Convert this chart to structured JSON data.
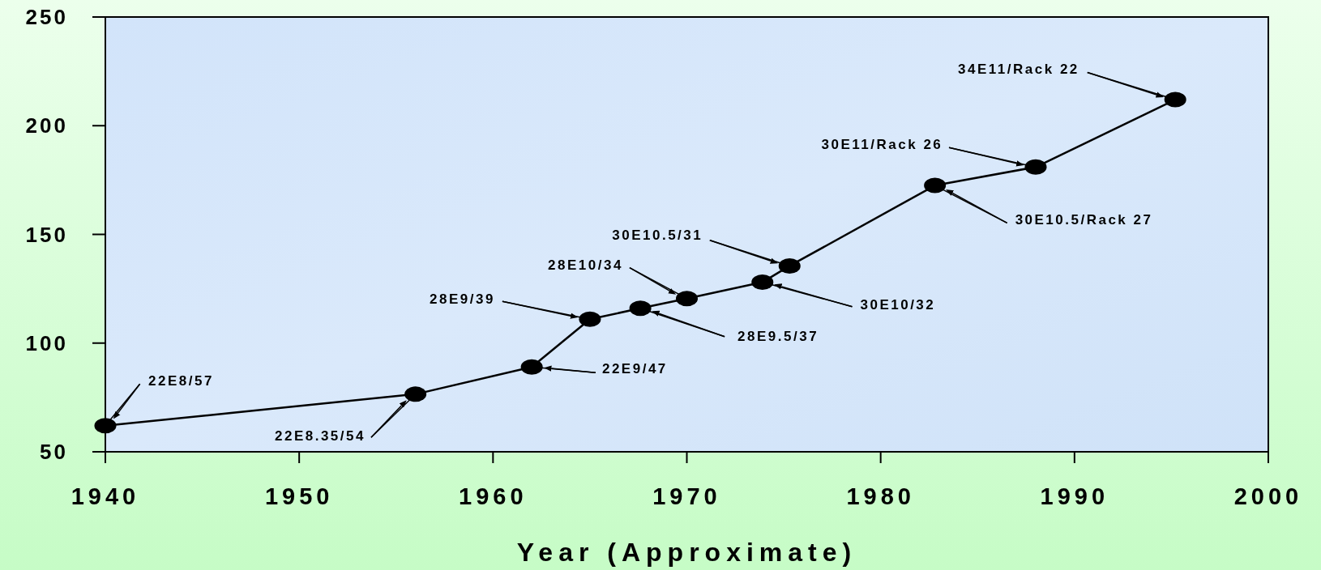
{
  "chart_data": {
    "type": "line",
    "xlabel": "Year (Approximate)",
    "x": [
      1940,
      1956,
      1962,
      1965,
      1967.6,
      1970,
      1973.9,
      1975.3,
      1982.8,
      1988,
      1995.2
    ],
    "series": [
      {
        "color": "#000000",
        "values": [
          62,
          76.5,
          89,
          111,
          116,
          120.5,
          128,
          135.5,
          172.5,
          181,
          212
        ]
      }
    ],
    "xlim": [
      1940,
      2000
    ],
    "xticks": [
      1940,
      1950,
      1960,
      1970,
      1980,
      1990,
      2000
    ],
    "ylim": [
      50,
      250
    ],
    "yticks": [
      50,
      100,
      150,
      200,
      250
    ],
    "grid": false,
    "marker": "circle",
    "line_style": "solid",
    "annotations": [
      {
        "text": "22E8/57",
        "x": 1940,
        "y": 62
      },
      {
        "text": "22E8.35/54",
        "x": 1956,
        "y": 76.5
      },
      {
        "text": "22E9/47",
        "x": 1962,
        "y": 89
      },
      {
        "text": "28E9/39",
        "x": 1965,
        "y": 111
      },
      {
        "text": "28E9.5/37",
        "x": 1967.6,
        "y": 116
      },
      {
        "text": "28E10/34",
        "x": 1970,
        "y": 120.5
      },
      {
        "text": "30E10/32",
        "x": 1973.9,
        "y": 128
      },
      {
        "text": "30E10.5/31",
        "x": 1975.3,
        "y": 135.5
      },
      {
        "text": "30E10.5/Rack 27",
        "x": 1982.8,
        "y": 172.5
      },
      {
        "text": "30E11/Rack 26",
        "x": 1988,
        "y": 181
      },
      {
        "text": "34E11/Rack 22",
        "x": 1995.2,
        "y": 212
      }
    ]
  }
}
